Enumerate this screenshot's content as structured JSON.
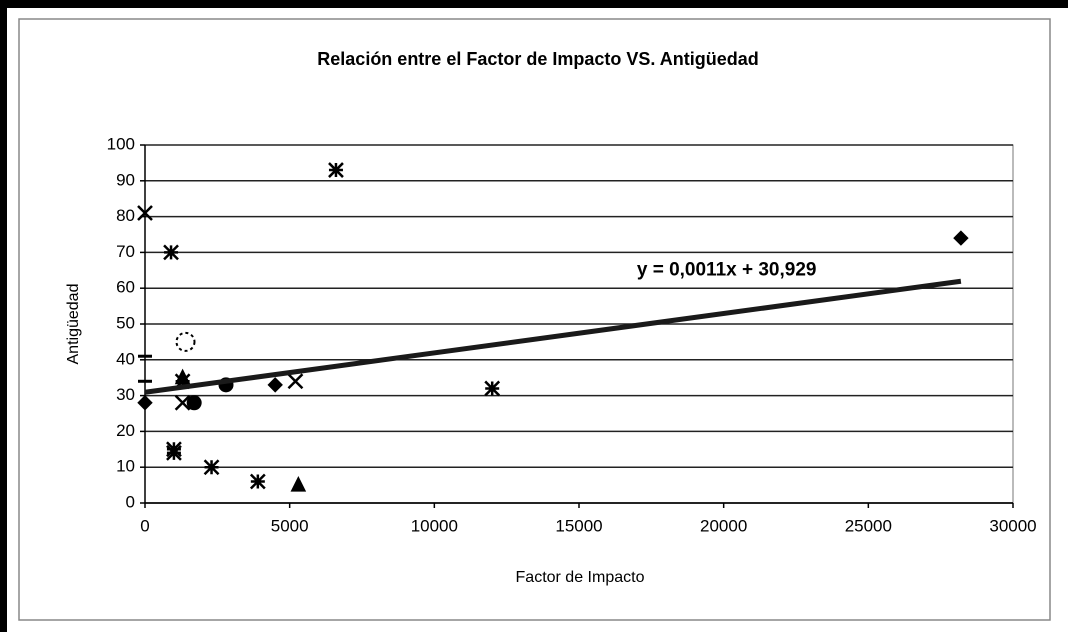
{
  "chart_data": {
    "type": "scatter",
    "title": "Relación entre el Factor de Impacto VS. Antigüedad",
    "x_label": "Factor de Impacto",
    "y_label": "Antigüedad",
    "xlim": [
      0,
      30000
    ],
    "ylim": [
      0,
      100
    ],
    "xticks": [
      0,
      5000,
      10000,
      15000,
      20000,
      25000,
      30000
    ],
    "yticks": [
      0,
      10,
      20,
      30,
      40,
      50,
      60,
      70,
      80,
      90,
      100
    ],
    "grid": true,
    "series": [
      {
        "name": "Antigüedad",
        "color": "#000000",
        "x": [
          0,
          0,
          0,
          0,
          900,
          1000,
          1000,
          1400,
          1300,
          1300,
          1300,
          1700,
          2300,
          2800,
          3900,
          4500,
          5200,
          5300,
          6600,
          12000,
          28200
        ],
        "values": [
          81,
          41,
          34,
          28,
          70,
          15,
          14,
          45,
          35,
          34,
          28,
          28,
          10,
          33,
          6,
          33,
          34,
          5,
          93,
          32,
          74
        ],
        "markers": [
          "x",
          "dash",
          "dash",
          "diamond",
          "star",
          "star",
          "star",
          "circle-open",
          "triangle",
          "star",
          "x",
          "circle",
          "star",
          "circle",
          "star",
          "diamond",
          "x",
          "triangle",
          "star",
          "star",
          "diamond"
        ]
      }
    ],
    "trendline": {
      "slope": 0.0011,
      "intercept": 30.929,
      "label": "y = 0,0011x + 30,929"
    }
  }
}
